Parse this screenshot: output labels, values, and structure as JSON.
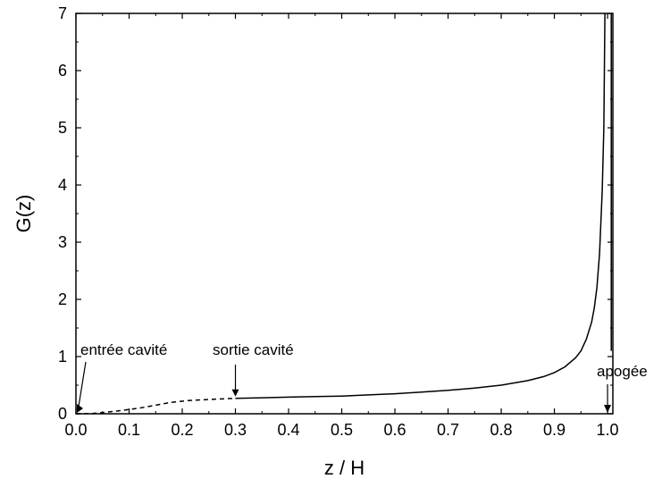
{
  "chart_data": {
    "type": "line",
    "title": "",
    "xlabel": "z / H",
    "ylabel": "G(z)",
    "xlim": [
      0,
      1.01
    ],
    "ylim": [
      0,
      7
    ],
    "x_ticks": [
      "0.0",
      "0.1",
      "0.2",
      "0.3",
      "0.4",
      "0.5",
      "0.6",
      "0.7",
      "0.8",
      "0.9",
      "1.0"
    ],
    "y_ticks": [
      "0",
      "1",
      "2",
      "3",
      "4",
      "5",
      "6",
      "7"
    ],
    "grid": false,
    "series": [
      {
        "style": "dashed",
        "x": [
          0.0,
          0.03,
          0.05,
          0.08,
          0.12,
          0.15,
          0.18,
          0.21,
          0.25,
          0.28,
          0.3
        ],
        "y": [
          0.0,
          0.005,
          0.02,
          0.05,
          0.1,
          0.15,
          0.2,
          0.23,
          0.25,
          0.262,
          0.27
        ]
      },
      {
        "style": "solid",
        "x": [
          0.3,
          0.35,
          0.4,
          0.45,
          0.5,
          0.55,
          0.6,
          0.65,
          0.7,
          0.75,
          0.8,
          0.85,
          0.88,
          0.9,
          0.92,
          0.94,
          0.95,
          0.96,
          0.97,
          0.975,
          0.98,
          0.985,
          0.99,
          0.993,
          0.995
        ],
        "y": [
          0.27,
          0.28,
          0.29,
          0.3,
          0.31,
          0.33,
          0.35,
          0.38,
          0.41,
          0.45,
          0.5,
          0.58,
          0.65,
          0.72,
          0.82,
          0.98,
          1.1,
          1.3,
          1.6,
          1.85,
          2.2,
          2.8,
          3.9,
          5.0,
          7.0
        ]
      }
    ],
    "annotations": [
      {
        "text": "entrée cavité",
        "x": 0.0,
        "y": 0.0
      },
      {
        "text": "sortie cavité",
        "x": 0.3,
        "y": 0.27
      },
      {
        "text": "apogée",
        "x": 1.0,
        "y": 0.0
      }
    ],
    "vertical_line_x": 1.007
  }
}
